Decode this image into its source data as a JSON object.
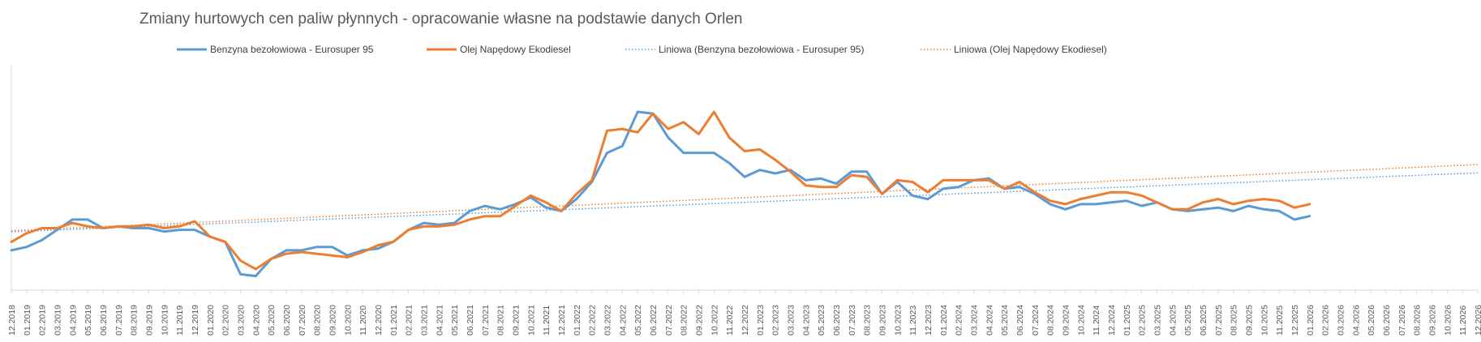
{
  "chart_data": {
    "type": "line",
    "title": "Zmiany hurtowych cen paliw płynnych - opracowanie własne na podstawie danych Orlen",
    "xlabel": "",
    "ylabel": "",
    "grid": false,
    "legend_position": "top",
    "categories": [
      "12.2018",
      "01.2019",
      "02.2019",
      "03.2019",
      "04.2019",
      "05.2019",
      "06.2019",
      "07.2019",
      "08.2019",
      "09.2019",
      "10.2019",
      "11.2019",
      "12.2019",
      "01.2020",
      "02.2020",
      "03.2020",
      "04.2020",
      "05.2020",
      "06.2020",
      "07.2020",
      "08.2020",
      "09.2020",
      "10.2020",
      "11.2020",
      "12.2020",
      "01.2021",
      "02.2021",
      "03.2021",
      "04.2021",
      "05.2021",
      "06.2021",
      "07.2021",
      "08.2021",
      "09.2021",
      "10.2021",
      "11.2021",
      "12.2021",
      "01.2022",
      "02.2022",
      "03.2022",
      "04.2022",
      "05.2022",
      "06.2022",
      "07.2022",
      "08.2022",
      "09.2022",
      "10.2022",
      "11.2022",
      "12.2022",
      "01.2023",
      "02.2023",
      "03.2023",
      "04.2023",
      "05.2023",
      "06.2023",
      "07.2023",
      "08.2023",
      "09.2023",
      "10.2023",
      "11.2023",
      "12.2023",
      "01.2024",
      "02.2024",
      "03.2024",
      "04.2024",
      "05.2024",
      "06.2024",
      "07.2024",
      "08.2024",
      "09.2024",
      "10.2024",
      "11.2024",
      "12.2024",
      "01.2025",
      "02.2025",
      "03.2025",
      "04.2025",
      "05.2025",
      "06.2025",
      "07.2025",
      "08.2025",
      "09.2025",
      "10.2025",
      "11.2025",
      "12.2025",
      "01.2026",
      "02.2026",
      "03.2026",
      "04.2026",
      "05.2026",
      "06.2026",
      "07.2026",
      "08.2026",
      "09.2026",
      "10.2026",
      "11.2026",
      "12.2026"
    ],
    "series": [
      {
        "name": "Benzyna bezołowiowa - Eurosuper 95",
        "color": "#5B9BD5",
        "style": "solid",
        "values": [
          0.19,
          0.21,
          0.25,
          0.31,
          0.37,
          0.37,
          0.32,
          0.33,
          0.32,
          0.32,
          0.3,
          0.31,
          0.31,
          0.27,
          0.24,
          0.05,
          0.04,
          0.14,
          0.19,
          0.19,
          0.21,
          0.21,
          0.16,
          0.19,
          0.2,
          0.24,
          0.31,
          0.35,
          0.34,
          0.35,
          0.42,
          0.45,
          0.43,
          0.46,
          0.5,
          0.44,
          0.42,
          0.49,
          0.59,
          0.76,
          0.8,
          1.0,
          0.99,
          0.85,
          0.76,
          0.76,
          0.76,
          0.7,
          0.62,
          0.66,
          0.64,
          0.66,
          0.6,
          0.61,
          0.58,
          0.65,
          0.65,
          0.52,
          0.59,
          0.51,
          0.49,
          0.55,
          0.56,
          0.6,
          0.61,
          0.55,
          0.56,
          0.52,
          0.46,
          0.43,
          0.46,
          0.46,
          0.47,
          0.48,
          0.45,
          0.47,
          0.43,
          0.42,
          0.43,
          0.44,
          0.42,
          0.45,
          0.43,
          0.42,
          0.37,
          0.39,
          null,
          null,
          null,
          null,
          null,
          null,
          null,
          null,
          null,
          null,
          null
        ]
      },
      {
        "name": "Olej Napędowy Ekodiesel",
        "color": "#ED7D31",
        "style": "solid",
        "values": [
          0.24,
          0.29,
          0.32,
          0.32,
          0.35,
          0.33,
          0.32,
          0.33,
          0.33,
          0.34,
          0.32,
          0.33,
          0.36,
          0.27,
          0.24,
          0.13,
          0.08,
          0.14,
          0.17,
          0.18,
          0.17,
          0.16,
          0.15,
          0.18,
          0.22,
          0.24,
          0.31,
          0.33,
          0.33,
          0.34,
          0.37,
          0.39,
          0.39,
          0.45,
          0.51,
          0.47,
          0.42,
          0.52,
          0.6,
          0.89,
          0.9,
          0.88,
          0.99,
          0.9,
          0.94,
          0.87,
          1.0,
          0.85,
          0.77,
          0.78,
          0.72,
          0.65,
          0.57,
          0.56,
          0.56,
          0.63,
          0.62,
          0.52,
          0.6,
          0.59,
          0.53,
          0.6,
          0.6,
          0.6,
          0.6,
          0.55,
          0.59,
          0.53,
          0.48,
          0.46,
          0.49,
          0.51,
          0.53,
          0.53,
          0.51,
          0.47,
          0.43,
          0.43,
          0.47,
          0.49,
          0.46,
          0.48,
          0.49,
          0.48,
          0.44,
          0.46,
          null,
          null,
          null,
          null,
          null,
          null,
          null,
          null,
          null,
          null,
          null
        ]
      },
      {
        "name": "Liniowa (Benzyna bezołowiowa - Eurosuper 95)",
        "color": "#5B9BD5",
        "style": "dotted",
        "trendline_of": 0
      },
      {
        "name": "Liniowa (Olej Napędowy Ekodiesel)",
        "color": "#ED7D31",
        "style": "dotted",
        "trendline_of": 1
      }
    ]
  }
}
